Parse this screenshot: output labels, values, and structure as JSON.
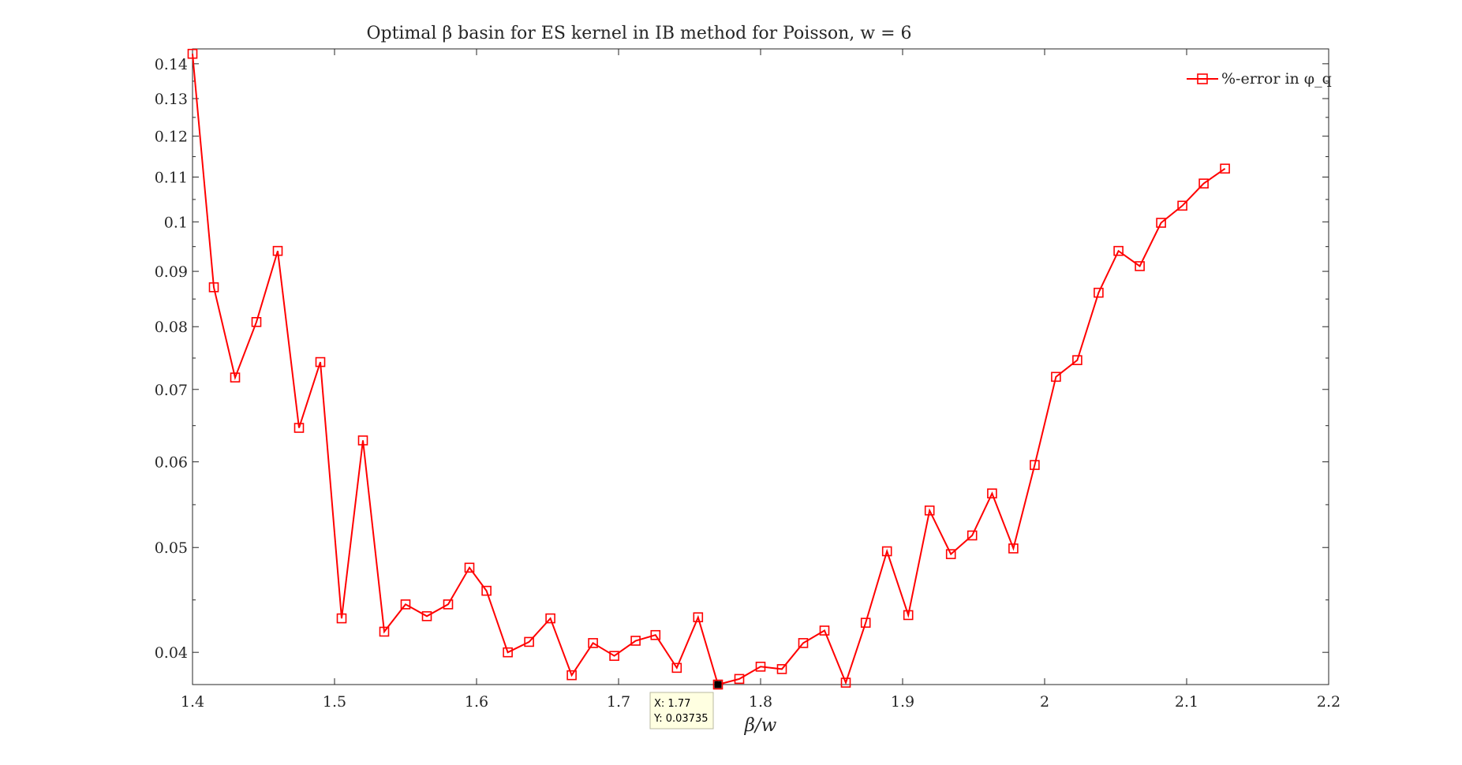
{
  "chart_data": {
    "type": "line",
    "title": "Optimal β basin for ES kernel in IB method for Poisson, w = 6",
    "xlabel": "β/w",
    "ylabel": "",
    "xlim": [
      1.4,
      2.2
    ],
    "ylim": [
      0.03735,
      0.1445
    ],
    "yscale": "log",
    "xticks": [
      1.4,
      1.5,
      1.6,
      1.7,
      1.8,
      1.9,
      2.0,
      2.1,
      2.2
    ],
    "xtick_labels": [
      "1.4",
      "1.5",
      "1.6",
      "1.7",
      "1.8",
      "1.9",
      "2",
      "2.1",
      "2.2"
    ],
    "yticks": [
      0.04,
      0.05,
      0.06,
      0.07,
      0.08,
      0.09,
      0.1,
      0.11,
      0.12,
      0.13,
      0.14
    ],
    "ytick_labels": [
      "0.04",
      "0.05",
      "0.06",
      "0.07",
      "0.08",
      "0.09",
      "0.1",
      "0.11",
      "0.12",
      "0.13",
      "0.14"
    ],
    "legend_position": "top-right",
    "grid": false,
    "series": [
      {
        "name": "%-error in φ_q",
        "color": "#ff0000",
        "marker": "square",
        "x": [
          1.4,
          1.415,
          1.43,
          1.445,
          1.46,
          1.475,
          1.49,
          1.505,
          1.52,
          1.535,
          1.55,
          1.565,
          1.58,
          1.595,
          1.607,
          1.622,
          1.637,
          1.652,
          1.667,
          1.682,
          1.697,
          1.712,
          1.726,
          1.741,
          1.756,
          1.77,
          1.785,
          1.8,
          1.815,
          1.83,
          1.845,
          1.86,
          1.874,
          1.889,
          1.904,
          1.919,
          1.934,
          1.949,
          1.963,
          1.978,
          1.993,
          2.008,
          2.023,
          2.038,
          2.052,
          2.067,
          2.082,
          2.097,
          2.112,
          2.127
        ],
        "y": [
          0.143,
          0.087,
          0.0718,
          0.0808,
          0.094,
          0.0645,
          0.0742,
          0.043,
          0.0628,
          0.0418,
          0.0443,
          0.0432,
          0.0443,
          0.0479,
          0.0456,
          0.04,
          0.0409,
          0.043,
          0.0381,
          0.0408,
          0.0397,
          0.041,
          0.0415,
          0.0387,
          0.0431,
          0.03735,
          0.0378,
          0.0388,
          0.0386,
          0.0408,
          0.0419,
          0.0375,
          0.0426,
          0.0496,
          0.0433,
          0.0541,
          0.0493,
          0.0513,
          0.0561,
          0.0499,
          0.0596,
          0.0719,
          0.0745,
          0.086,
          0.094,
          0.091,
          0.0998,
          0.1035,
          0.1085,
          0.112
        ]
      }
    ],
    "datatip": {
      "x_label": "X: 1.77",
      "y_label": "Y: 0.03735",
      "x": 1.77,
      "y": 0.03735
    }
  }
}
